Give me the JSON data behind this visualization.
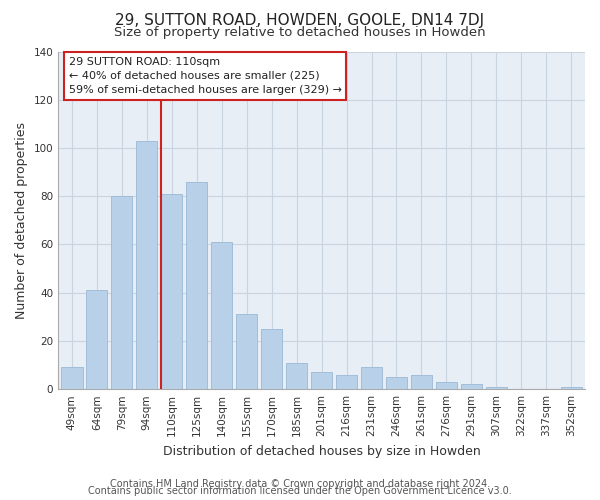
{
  "title": "29, SUTTON ROAD, HOWDEN, GOOLE, DN14 7DJ",
  "subtitle": "Size of property relative to detached houses in Howden",
  "xlabel": "Distribution of detached houses by size in Howden",
  "ylabel": "Number of detached properties",
  "categories": [
    "49sqm",
    "64sqm",
    "79sqm",
    "94sqm",
    "110sqm",
    "125sqm",
    "140sqm",
    "155sqm",
    "170sqm",
    "185sqm",
    "201sqm",
    "216sqm",
    "231sqm",
    "246sqm",
    "261sqm",
    "276sqm",
    "291sqm",
    "307sqm",
    "322sqm",
    "337sqm",
    "352sqm"
  ],
  "values": [
    9,
    41,
    80,
    103,
    81,
    86,
    61,
    31,
    25,
    11,
    7,
    6,
    9,
    5,
    6,
    3,
    2,
    1,
    0,
    0,
    1
  ],
  "bar_color": "#b8d0e8",
  "bar_edge_color": "#9ab8d4",
  "highlight_line_index": 4,
  "annotation_line1": "29 SUTTON ROAD: 110sqm",
  "annotation_line2": "← 40% of detached houses are smaller (225)",
  "annotation_line3": "59% of semi-detached houses are larger (329) →",
  "ylim": [
    0,
    140
  ],
  "yticks": [
    0,
    20,
    40,
    60,
    80,
    100,
    120,
    140
  ],
  "footer_line1": "Contains HM Land Registry data © Crown copyright and database right 2024.",
  "footer_line2": "Contains public sector information licensed under the Open Government Licence v3.0.",
  "background_color": "#ffffff",
  "plot_bg_color": "#e8eef5",
  "grid_color": "#c8d4e0",
  "title_fontsize": 11,
  "subtitle_fontsize": 9.5,
  "axis_label_fontsize": 9,
  "tick_fontsize": 7.5,
  "annotation_fontsize": 8,
  "footer_fontsize": 7
}
